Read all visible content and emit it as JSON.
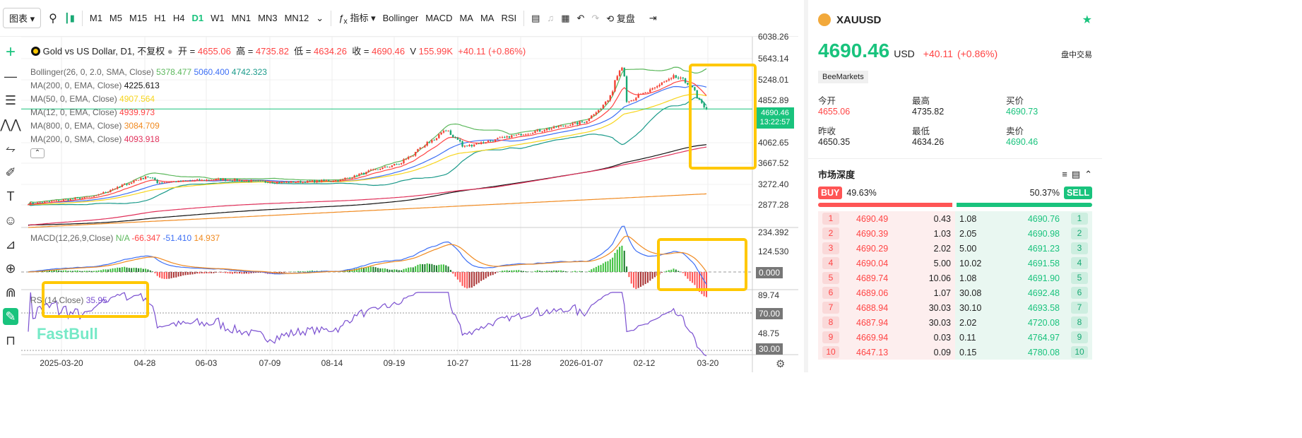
{
  "toolbar": {
    "chart_menu": "图表",
    "timeframes": [
      "M1",
      "M5",
      "M15",
      "H1",
      "H4",
      "D1",
      "W1",
      "MN1",
      "MN3",
      "MN12"
    ],
    "active_timeframe": "D1",
    "indicators_label": "指标",
    "indicator_shortcuts": [
      "Bollinger",
      "MACD",
      "MA",
      "MA",
      "RSI"
    ],
    "replay_label": "复盘"
  },
  "legend": {
    "title": "Gold vs US Dollar, D1, 不复权",
    "open_label": "开 =",
    "open": "4655.06",
    "high_label": "高 =",
    "high": "4735.82",
    "low_label": "低 =",
    "low": "4634.26",
    "close_label": "收 =",
    "close": "4690.46",
    "vol_label": "V",
    "volume": "155.99K",
    "change": "+40.11 (+0.86%)",
    "studies": [
      {
        "label": "Bollinger(26, 0, 2.0, SMA, Close)",
        "values": [
          "5378.477",
          "5060.400",
          "4742.323"
        ]
      },
      {
        "label": "MA(200, 0, EMA, Close)",
        "values": [
          "4225.613"
        ]
      },
      {
        "label": "MA(50, 0, EMA, Close)",
        "values": [
          "4907.564"
        ]
      },
      {
        "label": "MA(12, 0, EMA, Close)",
        "values": [
          "4939.973"
        ]
      },
      {
        "label": "MA(800, 0, EMA, Close)",
        "values": [
          "3084.709"
        ]
      },
      {
        "label": "MA(200, 0, SMA, Close)",
        "values": [
          "4093.918"
        ]
      }
    ]
  },
  "macd": {
    "label": "MACD(12,26,9,Close)",
    "na": "N/A",
    "values": [
      "-66.347",
      "-51.410",
      "14.937"
    ]
  },
  "rsi": {
    "label": "RSI(14,Close)",
    "value": "35.95"
  },
  "price_axis": [
    "6038.26",
    "5643.14",
    "5248.01",
    "4852.89",
    "4062.65",
    "3667.52",
    "3272.40",
    "2877.28"
  ],
  "last_price_tag": {
    "price": "4690.46",
    "countdown": "13:22:57"
  },
  "macd_axis": [
    "234.392",
    "124.530",
    "0.000"
  ],
  "rsi_axis": [
    "89.74",
    "70.00",
    "48.75",
    "30.00"
  ],
  "date_axis": [
    "2025-03-20",
    "04-28",
    "06-03",
    "07-09",
    "08-14",
    "09-19",
    "10-27",
    "11-28",
    "2026-01-07",
    "02-12",
    "03-20"
  ],
  "watermark": "FastBull",
  "chart_data": {
    "type": "candlestick",
    "anchors": [
      [
        "2025-02-10",
        2900
      ],
      [
        "2025-03-20",
        3030
      ],
      [
        "2025-04-21",
        3420
      ],
      [
        "2025-04-28",
        3300
      ],
      [
        "2025-06-03",
        3360
      ],
      [
        "2025-07-09",
        3300
      ],
      [
        "2025-08-14",
        3340
      ],
      [
        "2025-09-02",
        3520
      ],
      [
        "2025-09-19",
        3660
      ],
      [
        "2025-10-17",
        4300
      ],
      [
        "2025-10-27",
        3980
      ],
      [
        "2025-11-28",
        4200
      ],
      [
        "2026-01-07",
        4450
      ],
      [
        "2026-01-20",
        4800
      ],
      [
        "2026-01-29",
        5500
      ],
      [
        "2026-02-02",
        4800
      ],
      [
        "2026-02-12",
        5000
      ],
      [
        "2026-03-02",
        5300
      ],
      [
        "2026-03-10",
        5180
      ],
      [
        "2026-03-20",
        4690.46
      ]
    ],
    "colors": {
      "up": "#f44336",
      "down": "#19a974"
    }
  },
  "panel": {
    "symbol": "XAUUSD",
    "price": "4690.46",
    "currency": "USD",
    "change": "+40.11",
    "change_pct": "(+0.86%)",
    "session": "盘中交易",
    "broker": "BeeMarkets",
    "stats": [
      {
        "label": "今开",
        "value": "4655.06",
        "color": "#f44"
      },
      {
        "label": "最高",
        "value": "4735.82",
        "color": "#222"
      },
      {
        "label": "买价",
        "value": "4690.73",
        "color": "#19c37d"
      },
      {
        "label": "昨收",
        "value": "4650.35",
        "color": "#222"
      },
      {
        "label": "最低",
        "value": "4634.26",
        "color": "#222"
      },
      {
        "label": "卖价",
        "value": "4690.46",
        "color": "#19c37d"
      }
    ],
    "depth_title": "市场深度",
    "buy_label": "BUY",
    "buy_pct": "49.63%",
    "sell_label": "SELL",
    "sell_pct": "50.37%",
    "orderbook": [
      [
        "1",
        "4690.49",
        "0.43",
        "1.08",
        "4690.76"
      ],
      [
        "2",
        "4690.39",
        "1.03",
        "2.05",
        "4690.98"
      ],
      [
        "3",
        "4690.29",
        "2.02",
        "5.00",
        "4691.23"
      ],
      [
        "4",
        "4690.04",
        "5.00",
        "10.02",
        "4691.58"
      ],
      [
        "5",
        "4689.74",
        "10.06",
        "1.08",
        "4691.90"
      ],
      [
        "6",
        "4689.06",
        "1.07",
        "30.08",
        "4692.48"
      ],
      [
        "7",
        "4688.94",
        "30.03",
        "30.10",
        "4693.58"
      ],
      [
        "8",
        "4687.94",
        "30.03",
        "2.02",
        "4720.08"
      ],
      [
        "9",
        "4669.94",
        "0.03",
        "0.11",
        "4764.97"
      ],
      [
        "10",
        "4647.13",
        "0.09",
        "0.15",
        "4780.08"
      ]
    ]
  }
}
